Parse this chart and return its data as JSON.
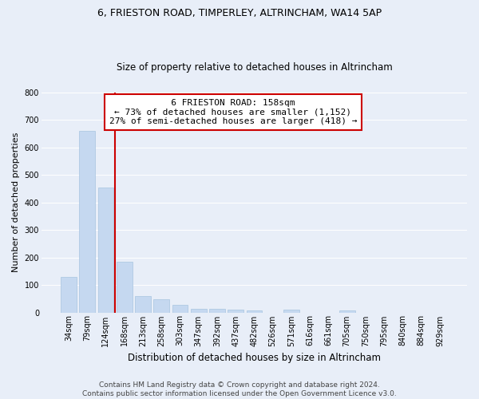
{
  "title1": "6, FRIESTON ROAD, TIMPERLEY, ALTRINCHAM, WA14 5AP",
  "title2": "Size of property relative to detached houses in Altrincham",
  "xlabel": "Distribution of detached houses by size in Altrincham",
  "ylabel": "Number of detached properties",
  "categories": [
    "34sqm",
    "79sqm",
    "124sqm",
    "168sqm",
    "213sqm",
    "258sqm",
    "303sqm",
    "347sqm",
    "392sqm",
    "437sqm",
    "482sqm",
    "526sqm",
    "571sqm",
    "616sqm",
    "661sqm",
    "705sqm",
    "750sqm",
    "795sqm",
    "840sqm",
    "884sqm",
    "929sqm"
  ],
  "values": [
    128,
    660,
    453,
    183,
    60,
    47,
    27,
    13,
    14,
    11,
    8,
    0,
    9,
    0,
    0,
    8,
    0,
    0,
    0,
    0,
    0
  ],
  "bar_color": "#c5d8f0",
  "bar_edgecolor": "#a8c4e0",
  "vline_color": "#cc0000",
  "annotation_title": "6 FRIESTON ROAD: 158sqm",
  "annotation_line1": "← 73% of detached houses are smaller (1,152)",
  "annotation_line2": "27% of semi-detached houses are larger (418) →",
  "annotation_box_edgecolor": "#cc0000",
  "background_color": "#e8eef8",
  "plot_bg_color": "#e8eef8",
  "ylim": [
    0,
    800
  ],
  "yticks": [
    0,
    100,
    200,
    300,
    400,
    500,
    600,
    700,
    800
  ],
  "footer1": "Contains HM Land Registry data © Crown copyright and database right 2024.",
  "footer2": "Contains public sector information licensed under the Open Government Licence v3.0.",
  "grid_color": "#ffffff",
  "title1_fontsize": 9,
  "title2_fontsize": 8.5,
  "xlabel_fontsize": 8.5,
  "ylabel_fontsize": 8,
  "tick_fontsize": 7,
  "annot_fontsize": 8,
  "footer_fontsize": 6.5
}
